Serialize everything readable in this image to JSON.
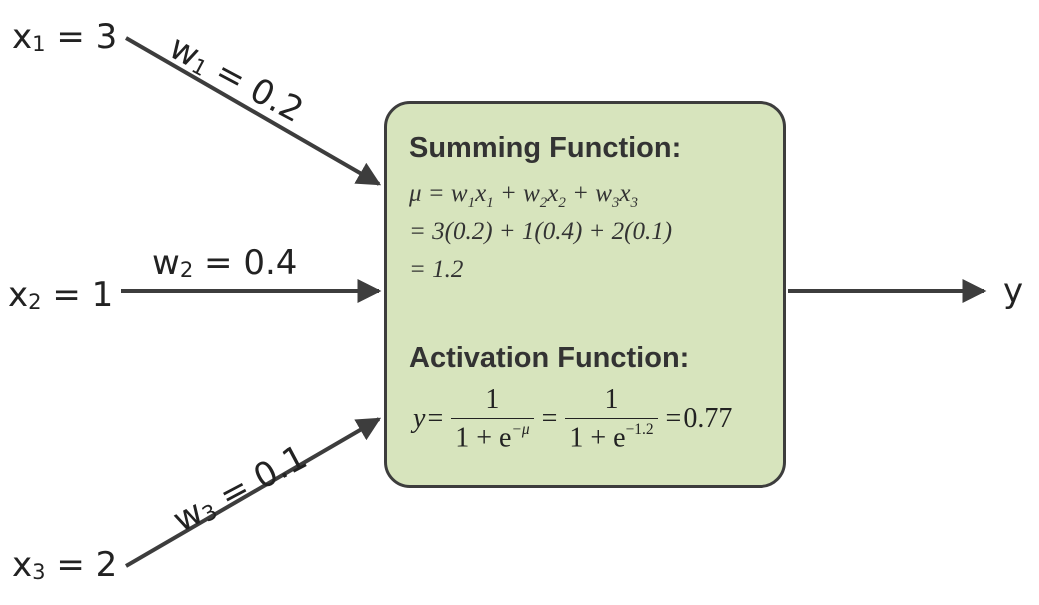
{
  "inputs": [
    {
      "var": "x",
      "sub": "1",
      "eq": " = 3"
    },
    {
      "var": "x",
      "sub": "2",
      "eq": " = 1"
    },
    {
      "var": "x",
      "sub": "3",
      "eq": " = 2"
    }
  ],
  "weights": [
    {
      "var": "w",
      "sub": "1",
      "eq": " = 0.2"
    },
    {
      "var": "w",
      "sub": "2",
      "eq": " = 0.4"
    },
    {
      "var": "w",
      "sub": "3",
      "eq": " = 0.1"
    }
  ],
  "output": "y",
  "summing": {
    "heading": "Summing Function:",
    "line1": {
      "mu": "μ = w",
      "s1": "1",
      "a": "x",
      "s2": "1",
      "b": " + w",
      "s3": "2",
      "c": "x",
      "s4": "2",
      "d": " + w",
      "s5": "3",
      "e": "x",
      "s6": "3"
    },
    "line2": " = 3(0.2) + 1(0.4) + 2(0.1)",
    "line3": "= 1.2"
  },
  "activation": {
    "heading": "Activation Function:",
    "y": "y",
    "eq1": "=",
    "num1": "1",
    "den1_base": "1 + e",
    "den1_exp": "−μ",
    "eq2": "=",
    "num2": "1",
    "den2_base": "1 + e",
    "den2_exp": "−1.2",
    "eq3": "=",
    "result": "0.77"
  },
  "colors": {
    "box_fill": "#d7e4bd",
    "box_border": "#3d3d3d",
    "arrow": "#3d3d3d"
  }
}
